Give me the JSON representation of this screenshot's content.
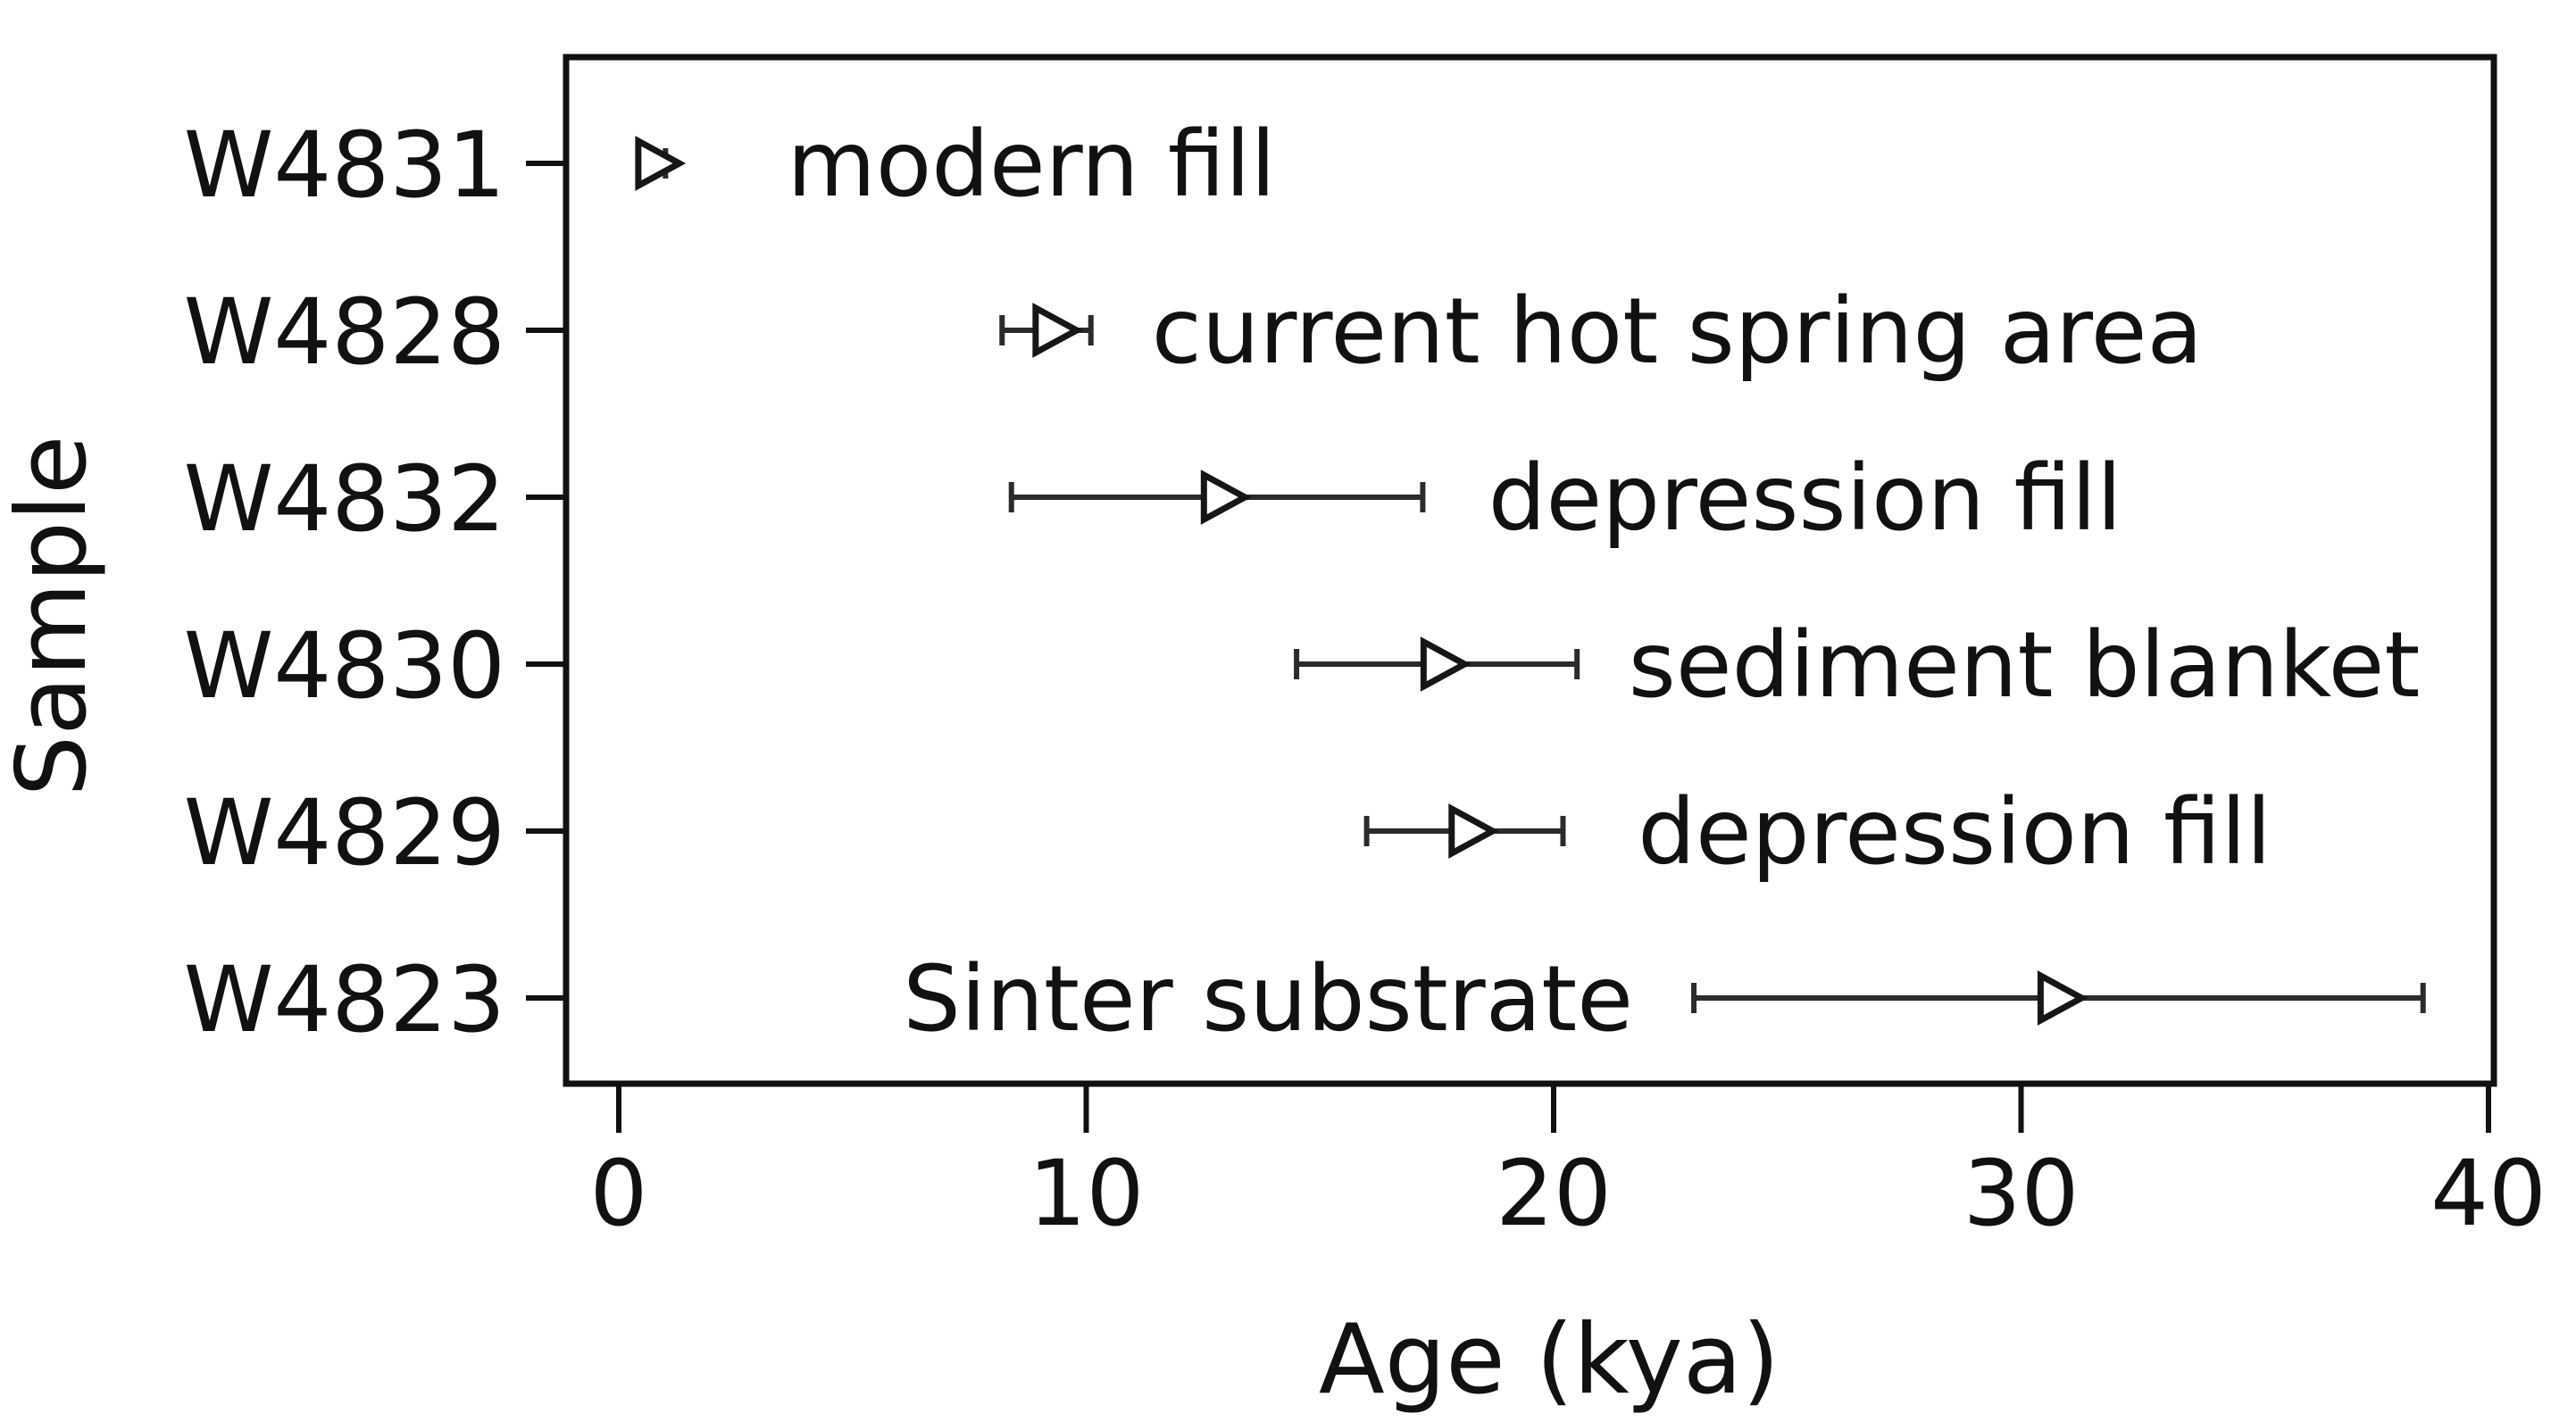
{
  "chart_data": {
    "type": "scatter",
    "subtype": "horizontal-error-bars",
    "title": "",
    "xlabel": "Age (kya)",
    "ylabel": "Sample",
    "xlim": [
      -1.2,
      40.2
    ],
    "xticks": [
      0,
      10,
      20,
      30,
      40
    ],
    "grid": false,
    "legend": "none",
    "marker": "open-right-triangle",
    "categories": [
      "W4831",
      "W4828",
      "W4832",
      "W4830",
      "W4829",
      "W4823"
    ],
    "series": [
      {
        "sample": "W4831",
        "age": 0.8,
        "ci_low": 0.6,
        "ci_high": 1.0,
        "annotation": "modern fill",
        "annotation_side": "right",
        "annotation_x": 3.6
      },
      {
        "sample": "W4828",
        "age": 9.3,
        "ci_low": 8.2,
        "ci_high": 10.1,
        "annotation": "current hot spring area",
        "annotation_side": "right",
        "annotation_x": 11.4
      },
      {
        "sample": "W4832",
        "age": 12.9,
        "ci_low": 8.4,
        "ci_high": 17.2,
        "annotation": "depression fill",
        "annotation_side": "right",
        "annotation_x": 18.6
      },
      {
        "sample": "W4830",
        "age": 17.6,
        "ci_low": 14.5,
        "ci_high": 20.5,
        "annotation": "sediment blanket",
        "annotation_side": "right",
        "annotation_x": 21.6
      },
      {
        "sample": "W4829",
        "age": 18.2,
        "ci_low": 16.0,
        "ci_high": 20.2,
        "annotation": "depression fill",
        "annotation_side": "right",
        "annotation_x": 21.8
      },
      {
        "sample": "W4823",
        "age": 30.8,
        "ci_low": 23.0,
        "ci_high": 38.6,
        "annotation": "Sinter substrate",
        "annotation_side": "left",
        "annotation_x": 21.7
      }
    ],
    "colors": {
      "axis": "#111111",
      "error_bar": "#2b2b2b",
      "marker_stroke": "#161616",
      "marker_fill": "#ffffff",
      "background": "#ffffff",
      "text": "#111111"
    }
  }
}
